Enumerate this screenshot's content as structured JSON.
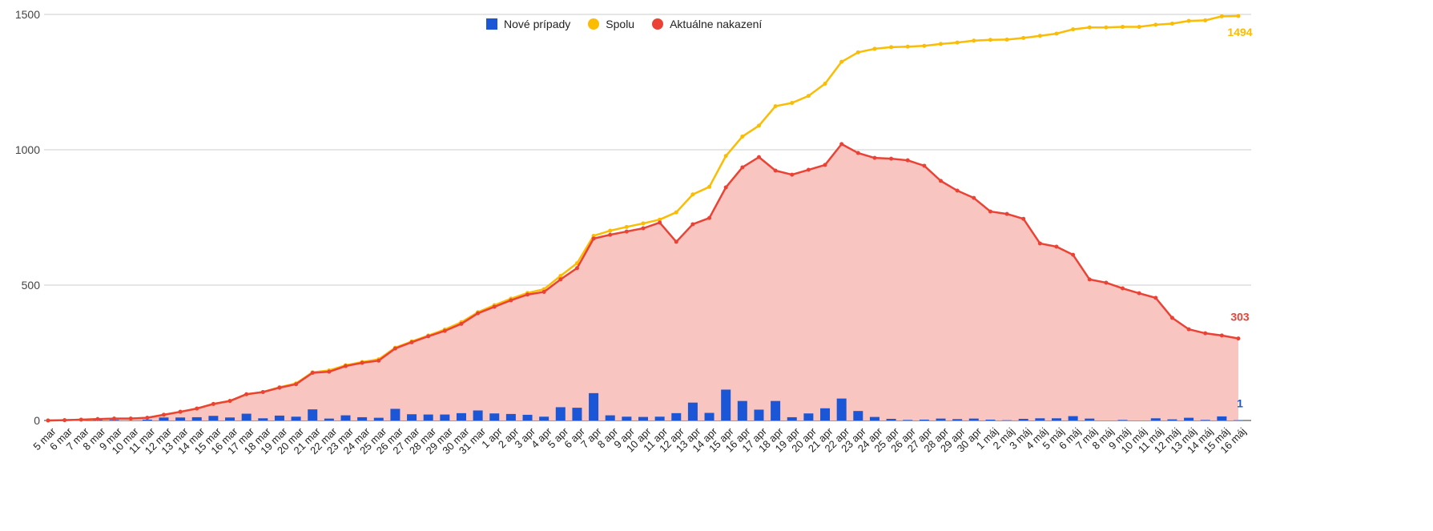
{
  "chart_data": {
    "type": "line",
    "title": "",
    "xlabel": "",
    "ylabel": "",
    "ylim": [
      0,
      1500
    ],
    "yticks": [
      "0",
      "500",
      "1000",
      "1500"
    ],
    "grid": true,
    "legend_position": "top-center",
    "categories": [
      "5 mar",
      "6 mar",
      "7 mar",
      "8 mar",
      "9 mar",
      "10 mar",
      "11 mar",
      "12 mar",
      "13 mar",
      "14 mar",
      "15 mar",
      "16 mar",
      "17 mar",
      "18 mar",
      "19 mar",
      "20 mar",
      "21 mar",
      "22 mar",
      "23 mar",
      "24 mar",
      "25 mar",
      "26 mar",
      "27 mar",
      "28 mar",
      "29 mar",
      "30 mar",
      "31 mar",
      "1 apr",
      "2 apr",
      "3 apr",
      "4 apr",
      "5 apr",
      "6 apr",
      "7 apr",
      "8 apr",
      "9 apr",
      "10 apr",
      "11 apr",
      "12 apr",
      "13 apr",
      "14 apr",
      "15 apr",
      "16 apr",
      "17 apr",
      "18 apr",
      "19 apr",
      "20 apr",
      "21 apr",
      "22 apr",
      "23 apr",
      "24 apr",
      "25 apr",
      "26 apr",
      "27 apr",
      "28 apr",
      "29 apr",
      "30 apr",
      "1 máj",
      "2 máj",
      "3 máj",
      "4 máj",
      "5 máj",
      "6 máj",
      "7 máj",
      "8 máj",
      "9 máj",
      "10 máj",
      "11 máj",
      "12 máj",
      "13 máj",
      "14 máj",
      "15 máj",
      "16 máj"
    ],
    "series": [
      {
        "name": "Nové prípady",
        "type": "bar",
        "color": "#1a56d6",
        "values": [
          0,
          1,
          2,
          2,
          2,
          0,
          3,
          11,
          11,
          12,
          17,
          11,
          25,
          8,
          18,
          14,
          41,
          7,
          19,
          12,
          10,
          43,
          23,
          22,
          22,
          27,
          37,
          26,
          24,
          21,
          14,
          49,
          47,
          101,
          19,
          14,
          13,
          14,
          27,
          66,
          28,
          114,
          72,
          40,
          72,
          12,
          26,
          45,
          81,
          35,
          13,
          6,
          2,
          3,
          7,
          5,
          7,
          3,
          1,
          6,
          8,
          8,
          16,
          7,
          0,
          2,
          0,
          8,
          4,
          10,
          2,
          15,
          1
        ]
      },
      {
        "name": "Spolu",
        "type": "line",
        "color": "#fbbc04",
        "values": [
          0,
          1,
          3,
          5,
          7,
          7,
          10,
          21,
          32,
          44,
          61,
          72,
          97,
          105,
          123,
          137,
          178,
          185,
          204,
          216,
          226,
          269,
          292,
          314,
          336,
          363,
          400,
          426,
          450,
          471,
          485,
          534,
          581,
          682,
          701,
          715,
          728,
          742,
          769,
          835,
          863,
          977,
          1049,
          1089,
          1161,
          1173,
          1199,
          1244,
          1325,
          1360,
          1373,
          1379,
          1381,
          1384,
          1391,
          1396,
          1403,
          1406,
          1407,
          1413,
          1421,
          1429,
          1445,
          1452,
          1452,
          1454,
          1454,
          1462,
          1466,
          1476,
          1478,
          1493,
          1494
        ]
      },
      {
        "name": "Aktuálne nakazení",
        "type": "area",
        "color": "#ea4335",
        "fill": "#f8c5c1",
        "values": [
          0,
          1,
          3,
          5,
          7,
          7,
          10,
          21,
          32,
          44,
          61,
          72,
          97,
          105,
          121,
          134,
          176,
          180,
          201,
          213,
          221,
          266,
          289,
          311,
          331,
          357,
          396,
          420,
          444,
          465,
          475,
          521,
          563,
          672,
          686,
          698,
          710,
          731,
          660,
          725,
          748,
          861,
          935,
          973,
          923,
          908,
          926,
          944,
          1021,
          988,
          970,
          967,
          961,
          941,
          885,
          849,
          822,
          772,
          763,
          745,
          654,
          642,
          612,
          521,
          509,
          488,
          470,
          453,
          379,
          337,
          322,
          314,
          303
        ]
      }
    ],
    "annotations": [
      "1494",
      "303",
      "1"
    ]
  }
}
